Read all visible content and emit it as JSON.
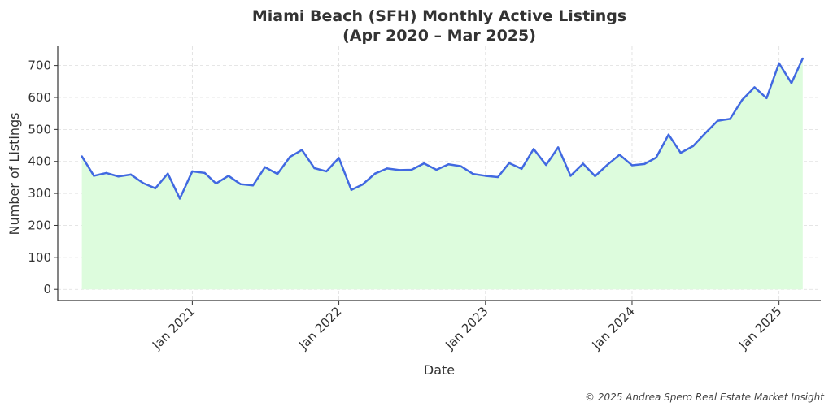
{
  "chart_data": {
    "type": "area",
    "title_line1": "Miami Beach (SFH) Monthly Active Listings",
    "title_line2": "(Apr 2020 – Mar 2025)",
    "xlabel": "Date",
    "ylabel": "Number of Listings",
    "ylim": [
      -35,
      760
    ],
    "yticks": [
      0,
      100,
      200,
      300,
      400,
      500,
      600,
      700
    ],
    "xlim": [
      "2020-02-01",
      "2025-04-15"
    ],
    "xticks": [
      {
        "date": "2021-01-01",
        "label": "Jan 2021"
      },
      {
        "date": "2022-01-01",
        "label": "Jan 2022"
      },
      {
        "date": "2023-01-01",
        "label": "Jan 2023"
      },
      {
        "date": "2024-01-01",
        "label": "Jan 2024"
      },
      {
        "date": "2025-01-01",
        "label": "Jan 2025"
      }
    ],
    "grid": true,
    "line_color": "#4169e1",
    "fill_color": "#ddfcdd",
    "series": [
      {
        "x": [
          "2020-04",
          "2020-05",
          "2020-06",
          "2020-07",
          "2020-08",
          "2020-09",
          "2020-10",
          "2020-11",
          "2020-12",
          "2021-01",
          "2021-02",
          "2021-03",
          "2021-04",
          "2021-05",
          "2021-06",
          "2021-07",
          "2021-08",
          "2021-09",
          "2021-10",
          "2021-11",
          "2021-12",
          "2022-01",
          "2022-02",
          "2022-03",
          "2022-04",
          "2022-05",
          "2022-06",
          "2022-07",
          "2022-08",
          "2022-09",
          "2022-10",
          "2022-11",
          "2022-12",
          "2023-01",
          "2023-02",
          "2023-03",
          "2023-04",
          "2023-05",
          "2023-06",
          "2023-07",
          "2023-08",
          "2023-09",
          "2023-10",
          "2023-11",
          "2023-12",
          "2024-01",
          "2024-02",
          "2024-03",
          "2024-04",
          "2024-05",
          "2024-06",
          "2024-07",
          "2024-08",
          "2024-09",
          "2024-10",
          "2024-11",
          "2024-12",
          "2025-01",
          "2025-02",
          "2025-03"
        ],
        "values": [
          416,
          355,
          364,
          353,
          359,
          332,
          316,
          362,
          284,
          369,
          364,
          331,
          355,
          329,
          325,
          382,
          361,
          414,
          436,
          379,
          369,
          411,
          311,
          328,
          362,
          378,
          373,
          374,
          394,
          374,
          391,
          385,
          361,
          355,
          351,
          395,
          377,
          439,
          389,
          444,
          355,
          393,
          354,
          390,
          421,
          388,
          392,
          412,
          484,
          427,
          448,
          488,
          527,
          533,
          592,
          632,
          598,
          707,
          645,
          722
        ]
      }
    ]
  },
  "credit": "© 2025 Andrea Spero Real Estate Market Insight"
}
